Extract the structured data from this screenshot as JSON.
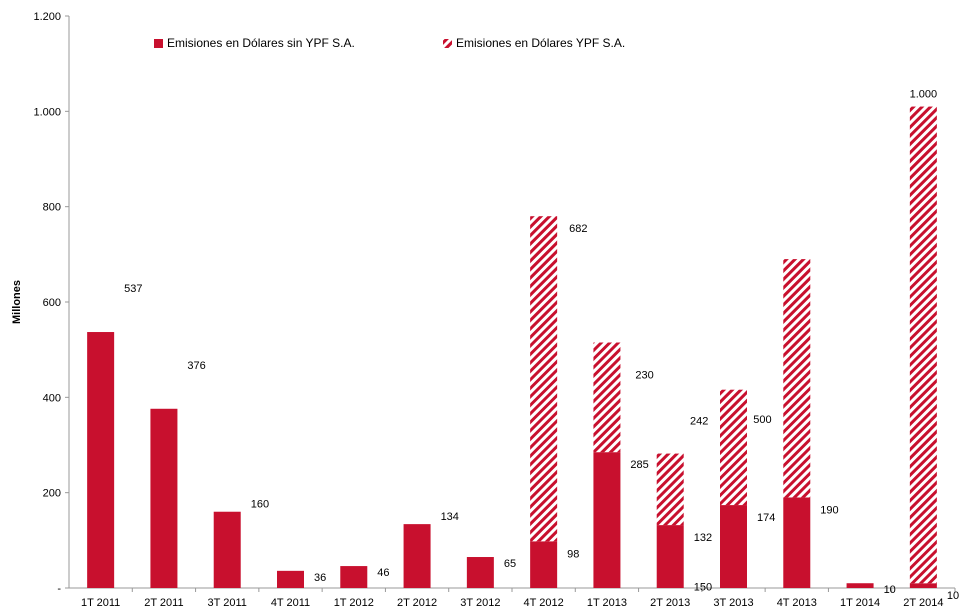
{
  "chart_data": {
    "type": "bar",
    "stacked": true,
    "categories": [
      "1T 2011",
      "2T 2011",
      "3T 2011",
      "4T 2011",
      "1T 2012",
      "2T 2012",
      "3T 2012",
      "4T 2012",
      "1T 2013",
      "2T 2013",
      "3T 2013",
      "4T 2013",
      "1T 2014",
      "2T 2014"
    ],
    "series": [
      {
        "name": "Emisiones en Dólares sin YPF S.A.",
        "values": [
          537,
          376,
          160,
          36,
          46,
          134,
          65,
          98,
          285,
          132,
          174,
          190,
          10,
          10
        ],
        "labels": [
          "537",
          "376",
          "160",
          "36",
          "46",
          "134",
          "65",
          "98",
          "285",
          "132",
          "174",
          "190",
          "10",
          "10"
        ],
        "color": "#C8102E",
        "pattern": "solid"
      },
      {
        "name": "Emisiones en Dólares YPF S.A.",
        "values": [
          0,
          0,
          0,
          0,
          0,
          0,
          0,
          682,
          230,
          150,
          242,
          500,
          0,
          1000
        ],
        "labels": [
          "",
          "",
          "",
          "",
          "",
          "",
          "",
          "682",
          "230",
          "150",
          "242",
          "500",
          "",
          "1.000"
        ],
        "color": "#C8102E",
        "pattern": "diagonal-stripes"
      }
    ],
    "ylabel": "Millones",
    "ylim": [
      0,
      1200
    ],
    "yticks": [
      0,
      200,
      400,
      600,
      800,
      1000,
      1200
    ],
    "ytick_labels": [
      "-",
      "200",
      "400",
      "600",
      "800",
      "1.000",
      "1.200"
    ],
    "grid": false,
    "legend_position": "top-left"
  }
}
